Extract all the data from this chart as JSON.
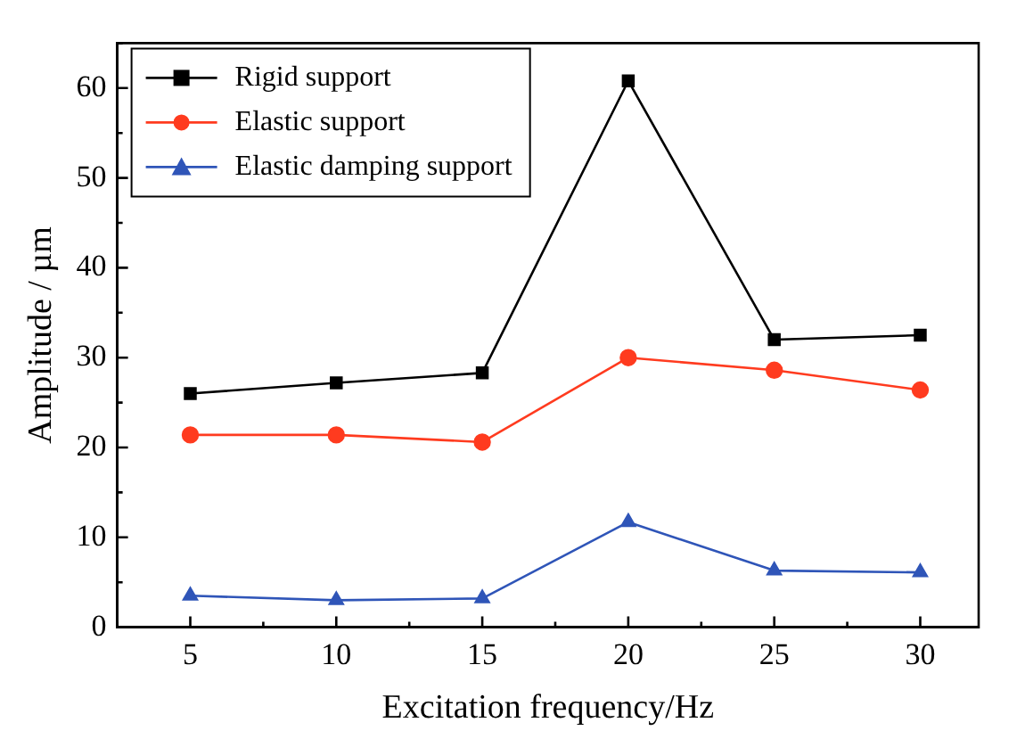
{
  "chart_data": {
    "type": "line",
    "xlabel": "Excitation frequency/Hz",
    "ylabel": "Amplitude / µm",
    "x": [
      5,
      10,
      15,
      20,
      25,
      30
    ],
    "xlim": [
      2.5,
      32
    ],
    "xticks": [
      5,
      10,
      15,
      20,
      25,
      30
    ],
    "ylim": [
      0,
      65
    ],
    "yticks": [
      0,
      10,
      20,
      30,
      40,
      50,
      60
    ],
    "grid": false,
    "legend": "top left",
    "series": [
      {
        "name": "Rigid support",
        "color": "#000000",
        "marker": "square",
        "values": [
          26.0,
          27.2,
          28.3,
          60.8,
          32.0,
          32.5
        ]
      },
      {
        "name": "Elastic support",
        "color": "#ff3b1f",
        "marker": "circle",
        "values": [
          21.4,
          21.4,
          20.6,
          30.0,
          28.6,
          26.4
        ]
      },
      {
        "name": "Elastic damping support",
        "color": "#2f55b8",
        "marker": "triangle",
        "values": [
          3.5,
          3.0,
          3.2,
          11.7,
          6.3,
          6.1
        ]
      }
    ]
  }
}
